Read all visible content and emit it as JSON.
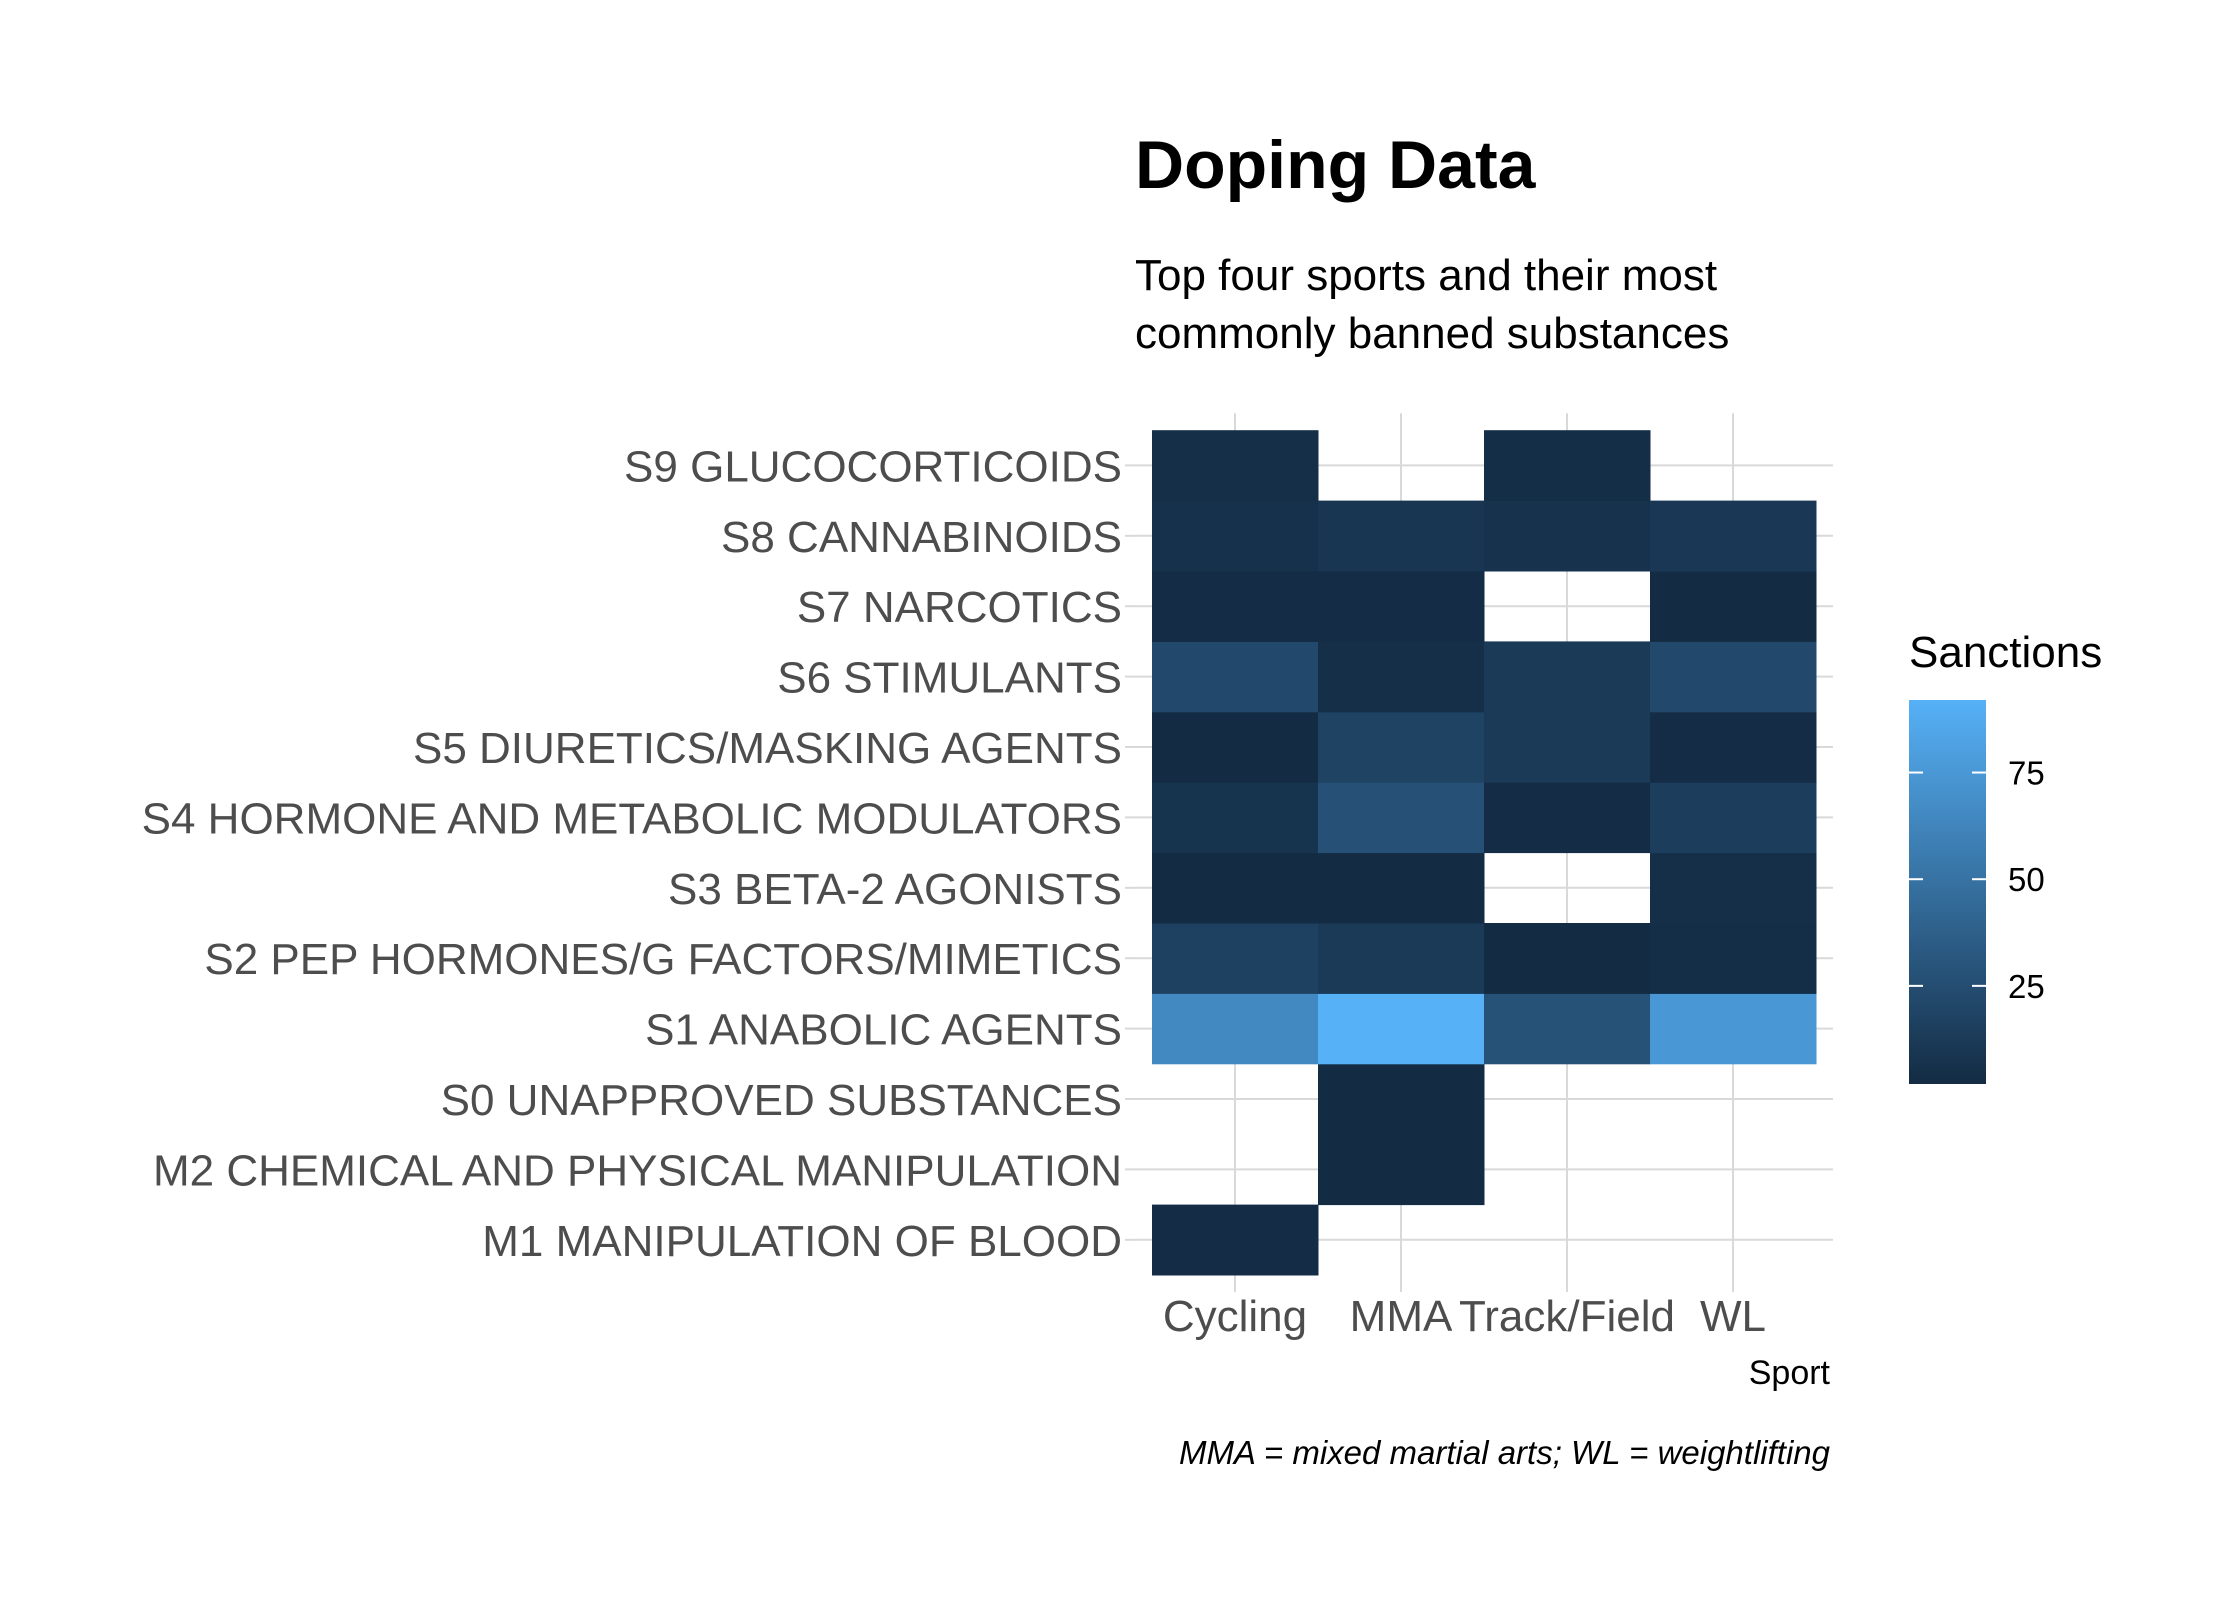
{
  "chart_data": {
    "type": "heatmap",
    "title": "Doping Data",
    "subtitle": [
      "Top four sports and their most",
      "commonly banned substances"
    ],
    "xlabel": "Sport",
    "ylabel": "",
    "caption": "MMA = mixed martial arts; WL = weightlifting",
    "x": [
      "Cycling",
      "MMA",
      "Track/Field",
      "WL"
    ],
    "y": [
      "M1 MANIPULATION OF BLOOD",
      "M2 CHEMICAL AND PHYSICAL MANIPULATION",
      "S0 UNAPPROVED SUBSTANCES",
      "S1 ANABOLIC AGENTS",
      "S2 PEP HORMONES/G FACTORS/MIMETICS",
      "S3 BETA-2 AGONISTS",
      "S4 HORMONE AND METABOLIC MODULATORS",
      "S5 DIURETICS/MASKING AGENTS",
      "S6 STIMULANTS",
      "S7 NARCOTICS",
      "S8 CANNABINOIDS",
      "S9 GLUCOCORTICOIDS"
    ],
    "cells": [
      {
        "x": "Cycling",
        "y": "M1 MANIPULATION OF BLOOD",
        "value": 3
      },
      {
        "x": "MMA",
        "y": "M2 CHEMICAL AND PHYSICAL MANIPULATION",
        "value": 2
      },
      {
        "x": "MMA",
        "y": "S0 UNAPPROVED SUBSTANCES",
        "value": 2
      },
      {
        "x": "Cycling",
        "y": "S1 ANABOLIC AGENTS",
        "value": 65
      },
      {
        "x": "MMA",
        "y": "S1 ANABOLIC AGENTS",
        "value": 92
      },
      {
        "x": "Track/Field",
        "y": "S1 ANABOLIC AGENTS",
        "value": 28
      },
      {
        "x": "WL",
        "y": "S1 ANABOLIC AGENTS",
        "value": 75
      },
      {
        "x": "Cycling",
        "y": "S2 PEP HORMONES/G FACTORS/MIMETICS",
        "value": 17
      },
      {
        "x": "MMA",
        "y": "S2 PEP HORMONES/G FACTORS/MIMETICS",
        "value": 12
      },
      {
        "x": "Track/Field",
        "y": "S2 PEP HORMONES/G FACTORS/MIMETICS",
        "value": 2
      },
      {
        "x": "WL",
        "y": "S2 PEP HORMONES/G FACTORS/MIMETICS",
        "value": 4
      },
      {
        "x": "Cycling",
        "y": "S3 BETA-2 AGONISTS",
        "value": 2
      },
      {
        "x": "MMA",
        "y": "S3 BETA-2 AGONISTS",
        "value": 2
      },
      {
        "x": "WL",
        "y": "S3 BETA-2 AGONISTS",
        "value": 5
      },
      {
        "x": "Cycling",
        "y": "S4 HORMONE AND METABOLIC MODULATORS",
        "value": 8
      },
      {
        "x": "MMA",
        "y": "S4 HORMONE AND METABOLIC MODULATORS",
        "value": 27
      },
      {
        "x": "Track/Field",
        "y": "S4 HORMONE AND METABOLIC MODULATORS",
        "value": 3
      },
      {
        "x": "WL",
        "y": "S4 HORMONE AND METABOLIC MODULATORS",
        "value": 14
      },
      {
        "x": "Cycling",
        "y": "S5 DIURETICS/MASKING AGENTS",
        "value": 2
      },
      {
        "x": "MMA",
        "y": "S5 DIURETICS/MASKING AGENTS",
        "value": 18
      },
      {
        "x": "Track/Field",
        "y": "S5 DIURETICS/MASKING AGENTS",
        "value": 12
      },
      {
        "x": "WL",
        "y": "S5 DIURETICS/MASKING AGENTS",
        "value": 3
      },
      {
        "x": "Cycling",
        "y": "S6 STIMULANTS",
        "value": 22
      },
      {
        "x": "MMA",
        "y": "S6 STIMULANTS",
        "value": 5
      },
      {
        "x": "Track/Field",
        "y": "S6 STIMULANTS",
        "value": 12
      },
      {
        "x": "WL",
        "y": "S6 STIMULANTS",
        "value": 22
      },
      {
        "x": "Cycling",
        "y": "S7 NARCOTICS",
        "value": 3
      },
      {
        "x": "MMA",
        "y": "S7 NARCOTICS",
        "value": 3
      },
      {
        "x": "WL",
        "y": "S7 NARCOTICS",
        "value": 2
      },
      {
        "x": "Cycling",
        "y": "S8 CANNABINOIDS",
        "value": 6
      },
      {
        "x": "MMA",
        "y": "S8 CANNABINOIDS",
        "value": 9
      },
      {
        "x": "Track/Field",
        "y": "S8 CANNABINOIDS",
        "value": 7
      },
      {
        "x": "WL",
        "y": "S8 CANNABINOIDS",
        "value": 11
      },
      {
        "x": "Cycling",
        "y": "S9 GLUCOCORTICOIDS",
        "value": 5
      },
      {
        "x": "Track/Field",
        "y": "S9 GLUCOCORTICOIDS",
        "value": 4
      }
    ],
    "legend": {
      "title": "Sanctions",
      "ticks": [
        25,
        50,
        75
      ],
      "range": [
        2,
        92
      ],
      "low_color": "#132B43",
      "high_color": "#56B1F7",
      "placement": "right"
    },
    "grid": true
  }
}
